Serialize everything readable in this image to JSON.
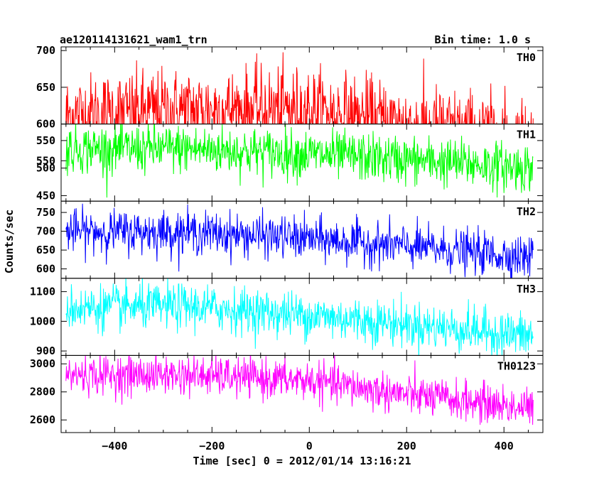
{
  "header": {
    "title": "ae120114131621_wam1_trn",
    "bin_time": "Bin time: 1.0 s"
  },
  "axes": {
    "xlabel": "Time [sec] 0 = 2012/01/14 13:16:21",
    "ylabel": "Counts/sec"
  },
  "chart_data": {
    "type": "line",
    "layout": "stacked panels with shared x axis",
    "xlim": [
      -510,
      480
    ],
    "x_range_of_data": [
      -500,
      460
    ],
    "xticks": [
      -400,
      -200,
      0,
      200,
      400
    ],
    "xtick_labels": [
      "−400",
      "−200",
      "0",
      "200",
      "400"
    ],
    "panels": [
      {
        "name": "TH0",
        "color": "#ff0000",
        "ylim": [
          600,
          705
        ],
        "yticks": [
          550,
          600,
          650,
          700
        ],
        "ytick_labels": [
          "550",
          "600",
          "650",
          "700"
        ],
        "trend": [
          [
            -500,
            612
          ],
          [
            -250,
            620
          ],
          [
            0,
            620
          ],
          [
            200,
            600
          ],
          [
            460,
            580
          ]
        ],
        "noise_sd": 28
      },
      {
        "name": "TH1",
        "color": "#00ff00",
        "ylim": [
          440,
          580
        ],
        "yticks": [
          450,
          500,
          550
        ],
        "ytick_labels": [
          "450",
          "500",
          "550"
        ],
        "trend": [
          [
            -500,
            535
          ],
          [
            -250,
            535
          ],
          [
            0,
            525
          ],
          [
            200,
            515
          ],
          [
            460,
            500
          ]
        ],
        "noise_sd": 22
      },
      {
        "name": "TH2",
        "color": "#0000ff",
        "ylim": [
          575,
          780
        ],
        "yticks": [
          600,
          650,
          700,
          750
        ],
        "ytick_labels": [
          "600",
          "650",
          "700",
          "750"
        ],
        "trend": [
          [
            -500,
            700
          ],
          [
            -250,
            698
          ],
          [
            0,
            680
          ],
          [
            200,
            660
          ],
          [
            460,
            630
          ]
        ],
        "noise_sd": 28
      },
      {
        "name": "TH3",
        "color": "#00ffff",
        "ylim": [
          885,
          1145
        ],
        "yticks": [
          900,
          1000,
          1100
        ],
        "ytick_labels": [
          "900",
          "1000",
          "1100"
        ],
        "trend": [
          [
            -500,
            1045
          ],
          [
            -250,
            1050
          ],
          [
            0,
            1020
          ],
          [
            200,
            990
          ],
          [
            460,
            950
          ]
        ],
        "noise_sd": 38
      },
      {
        "name": "TH0123",
        "color": "#ff00ff",
        "ylim": [
          2510,
          3060
        ],
        "yticks": [
          2600,
          2800,
          3000
        ],
        "ytick_labels": [
          "2600",
          "2800",
          "3000"
        ],
        "trend": [
          [
            -500,
            2920
          ],
          [
            -250,
            2920
          ],
          [
            0,
            2880
          ],
          [
            200,
            2780
          ],
          [
            460,
            2680
          ]
        ],
        "noise_sd": 70
      }
    ]
  }
}
